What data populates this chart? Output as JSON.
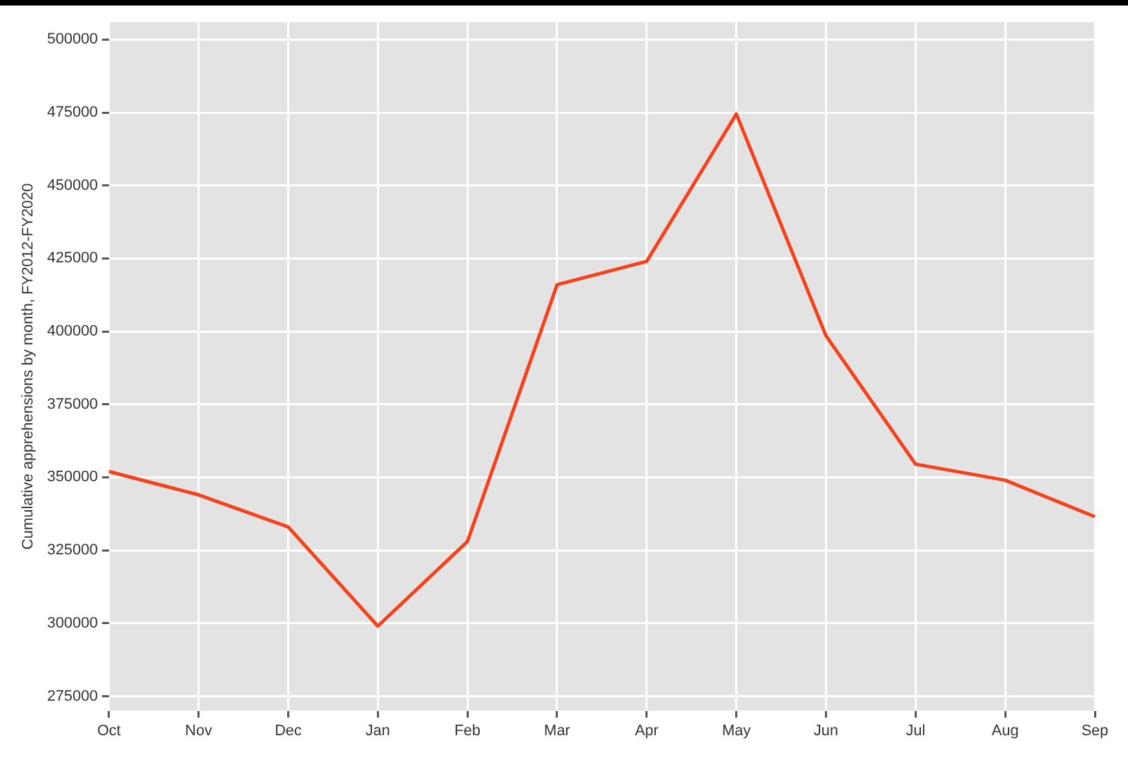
{
  "chart_data": {
    "type": "line",
    "ylabel": "Cumulative apprehensions by month, FY2012-FY2020",
    "categories": [
      "Oct",
      "Nov",
      "Dec",
      "Jan",
      "Feb",
      "Mar",
      "Apr",
      "May",
      "Jun",
      "Jul",
      "Aug",
      "Sep"
    ],
    "series": [
      {
        "color": "#f4421c",
        "values": [
          352000,
          344000,
          333000,
          299000,
          328000,
          416000,
          424000,
          474500,
          398500,
          354500,
          349000,
          336500
        ]
      }
    ],
    "ylim": [
      270000,
      506000
    ],
    "yticks": [
      275000,
      300000,
      325000,
      350000,
      375000,
      400000,
      425000,
      450000,
      475000,
      500000
    ],
    "grid": true,
    "legend": false,
    "marker": "none",
    "line_style": "solid"
  }
}
